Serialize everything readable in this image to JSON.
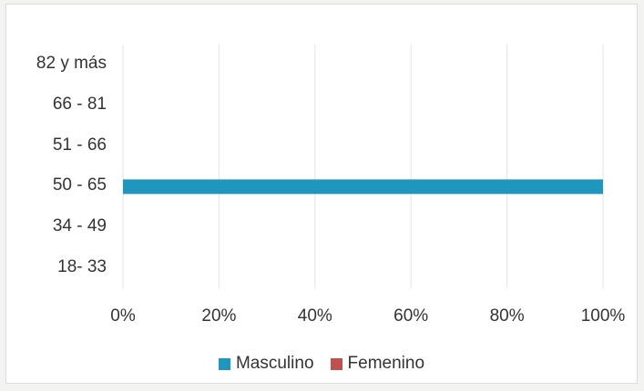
{
  "chart_data": {
    "type": "bar",
    "orientation": "horizontal",
    "stacked": true,
    "categories": [
      "18- 33",
      "34 - 49",
      "50 - 65",
      "51 - 66",
      "66 - 81",
      "82 y más"
    ],
    "series": [
      {
        "name": "Masculino",
        "values": [
          0,
          0,
          100,
          0,
          0,
          0
        ],
        "color": "#1f96be"
      },
      {
        "name": "Femenino",
        "values": [
          0,
          0,
          0,
          0,
          0,
          0
        ],
        "color": "#c0504d"
      }
    ],
    "x_ticks": [
      "0%",
      "20%",
      "40%",
      "60%",
      "80%",
      "100%"
    ],
    "xlim": [
      0,
      100
    ],
    "x_unit": "percent",
    "grid": true,
    "legend_position": "bottom",
    "title": "",
    "xlabel": "",
    "ylabel": ""
  }
}
